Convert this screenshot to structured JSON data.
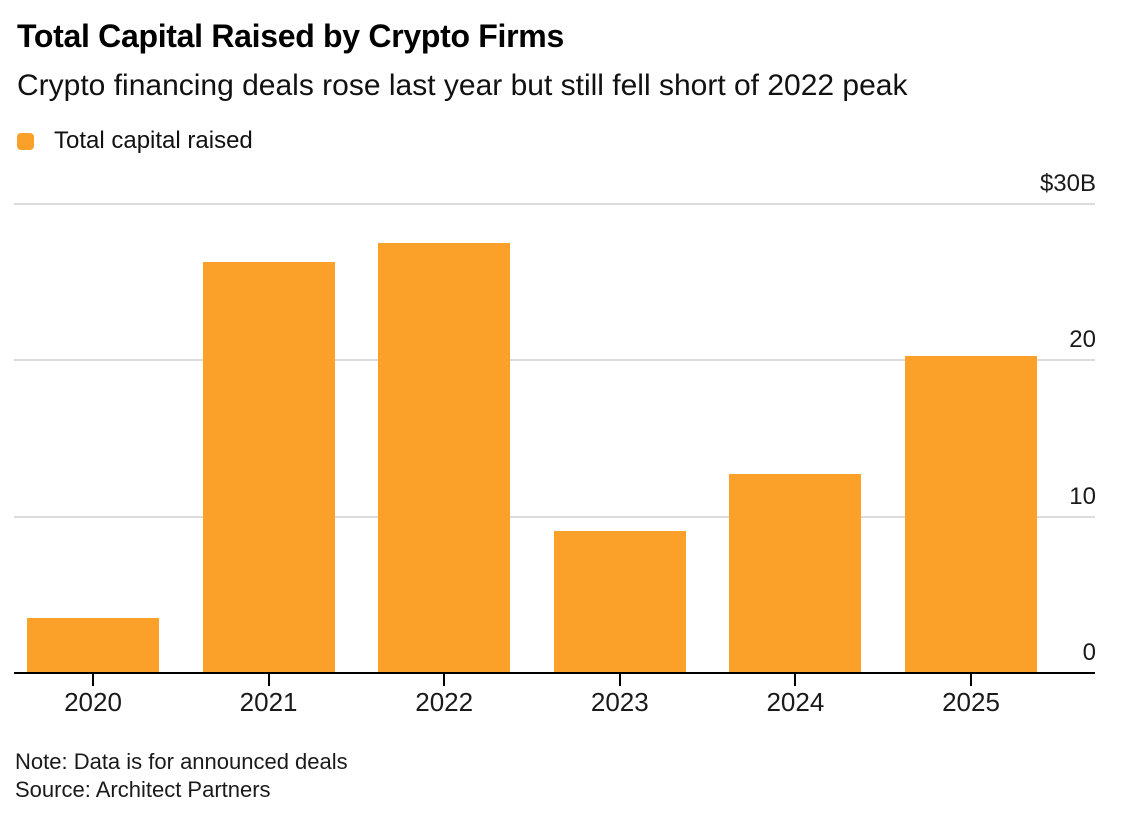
{
  "header": {
    "title": "Total Capital Raised by Crypto Firms",
    "subtitle": "Crypto financing deals rose last year but still fell short of 2022 peak"
  },
  "legend": {
    "label": "Total capital raised",
    "swatch_color": "#FBA129"
  },
  "chart_data": {
    "type": "bar",
    "title": "Total Capital Raised by Crypto Firms",
    "subtitle": "Crypto financing deals rose last year but still fell short of 2022 peak",
    "series_name": "Total capital raised",
    "categories": [
      "2020",
      "2021",
      "2022",
      "2023",
      "2024",
      "2025"
    ],
    "values": [
      3.5,
      26.3,
      27.5,
      9.1,
      12.7,
      20.3
    ],
    "unit": "billions USD",
    "xlabel": "",
    "ylabel": "",
    "ylim": [
      0,
      30
    ],
    "yticks": [
      0,
      10,
      20,
      30
    ],
    "ytick_labels": [
      "0",
      "10",
      "20",
      "$30B"
    ],
    "grid": "horizontal",
    "legend_position": "top-left",
    "axis_labels_side": "right",
    "bar_color": "#FBA129"
  },
  "footer": {
    "note": "Note: Data is for announced deals",
    "source": "Source: Architect Partners"
  },
  "colors": {
    "bar": "#FBA129",
    "gridline": "#DCDCDC",
    "axis": "#000000",
    "background": "#FFFFFF",
    "text": "#000000"
  }
}
